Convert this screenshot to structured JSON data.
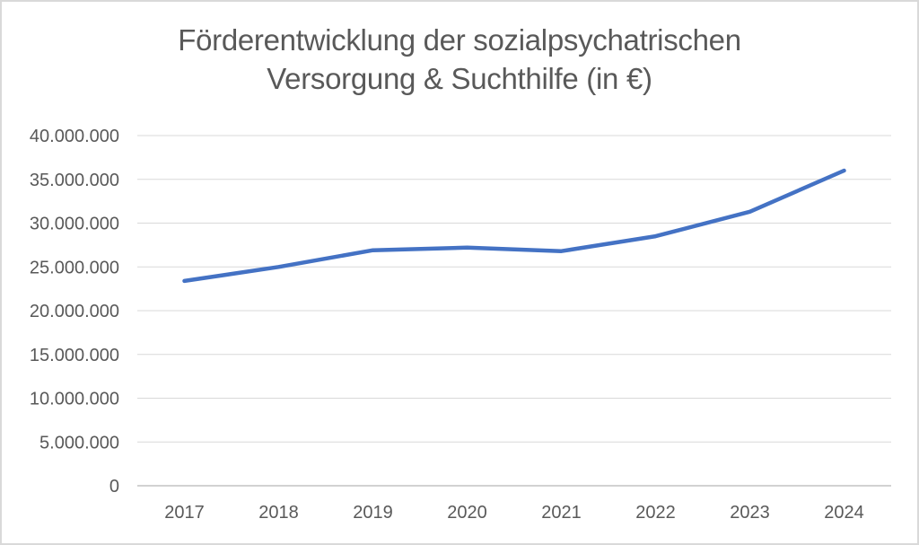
{
  "chart_data": {
    "type": "line",
    "title": "Förderentwicklung der sozialpsychatrischen Versorgung & Suchthilfe (in €)",
    "title_lines": [
      "Förderentwicklung der sozialpsychatrischen",
      "Versorgung & Suchthilfe (in €)"
    ],
    "categories": [
      "2017",
      "2018",
      "2019",
      "2020",
      "2021",
      "2022",
      "2023",
      "2024"
    ],
    "values": [
      23400000,
      25000000,
      26900000,
      27200000,
      26800000,
      28500000,
      31300000,
      36000000
    ],
    "y_tick_labels": [
      "40.000.000",
      "35.000.000",
      "30.000.000",
      "25.000.000",
      "20.000.000",
      "15.000.000",
      "10.000.000",
      "5.000.000",
      "0"
    ],
    "y_tick_values": [
      40000000,
      35000000,
      30000000,
      25000000,
      20000000,
      15000000,
      10000000,
      5000000,
      0
    ],
    "ylim": [
      0,
      40000000
    ],
    "xlabel": "",
    "ylabel": "",
    "grid": "horizontal",
    "legend": "none",
    "line_color": "#4472C4",
    "text_color": "#595959",
    "gridline_color": "#d9d9d9",
    "axis_color": "#d2d2d2",
    "border_color": "#d9d9d9",
    "background": "#ffffff"
  }
}
